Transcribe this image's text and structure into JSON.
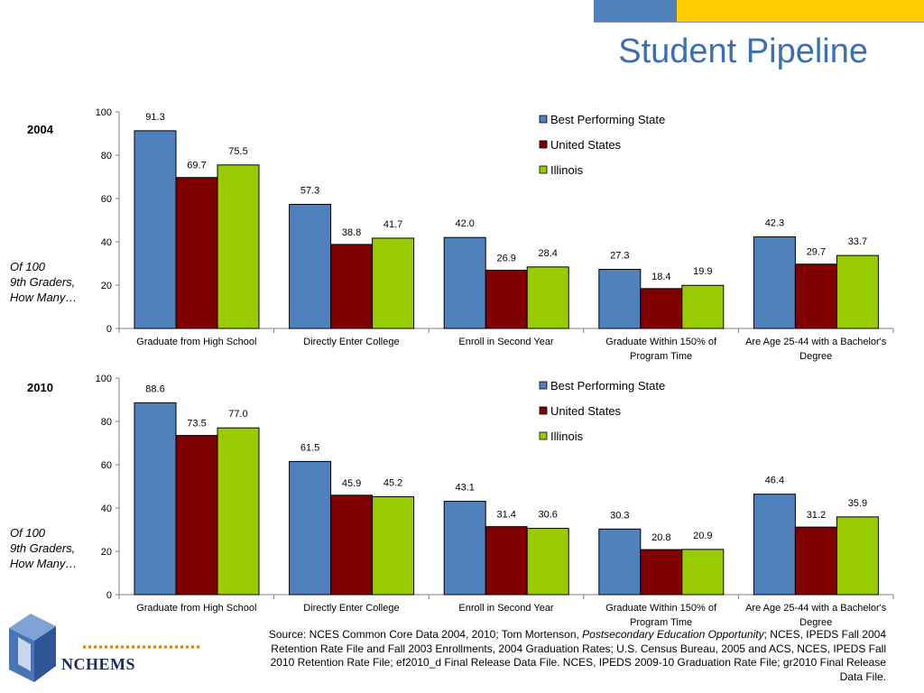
{
  "title": "Student Pipeline",
  "left_caption": {
    "line1": "Of 100",
    "line2": "9th Graders,",
    "line3": "How Many…"
  },
  "source": {
    "prefix": "Source: NCES Common Core Data 2004, 2010; Tom Mortenson, ",
    "italic": "Postsecondary Education Opportunity",
    "suffix": "; NCES, IPEDS Fall 2004 Retention Rate File and Fall 2003 Enrollments, 2004 Graduation Rates; U.S. Census Bureau, 2005  and ACS, NCES, IPEDS Fall 2010 Retention Rate File; ef2010_d Final Release Data File. NCES, IPEDS 2009-10 Graduation Rate File; gr2010 Final Release Data File."
  },
  "logo": {
    "text": "NCHEMS"
  },
  "colors": {
    "best": "#4f81bd",
    "us": "#800000",
    "il": "#99cc00",
    "title": "#3a6fb5"
  },
  "chart_data": [
    {
      "type": "bar",
      "year_label": "2004",
      "categories": [
        [
          "Graduate from High School"
        ],
        [
          "Directly Enter College"
        ],
        [
          "Enroll in Second Year"
        ],
        [
          "Graduate Within 150% of",
          "Program Time"
        ],
        [
          "Are Age 25-44 with a Bachelor's",
          "Degree"
        ]
      ],
      "series": [
        {
          "name": "Best Performing State",
          "color": "#4f81bd",
          "values": [
            91.3,
            57.3,
            42.0,
            27.3,
            42.3
          ],
          "labels": [
            "91.3",
            "57.3",
            "42.0",
            "27.3",
            "42.3"
          ]
        },
        {
          "name": "United States",
          "color": "#800000",
          "values": [
            69.7,
            38.8,
            26.9,
            18.4,
            29.7
          ],
          "labels": [
            "69.7",
            "38.8",
            "26.9",
            "18.4",
            "29.7"
          ]
        },
        {
          "name": "Illinois",
          "color": "#99cc00",
          "values": [
            75.5,
            41.7,
            28.4,
            19.9,
            33.7
          ],
          "labels": [
            "75.5",
            "41.7",
            "28.4",
            "19.9",
            "33.7"
          ]
        }
      ],
      "ylim": [
        0,
        100
      ],
      "yticks": [
        0,
        20,
        40,
        60,
        80,
        100
      ],
      "legend": "top-right"
    },
    {
      "type": "bar",
      "year_label": "2010",
      "categories": [
        [
          "Graduate from High School"
        ],
        [
          "Directly Enter College"
        ],
        [
          "Enroll in Second Year"
        ],
        [
          "Graduate Within 150% of",
          "Program Time"
        ],
        [
          "Are Age 25-44 with a Bachelor's",
          "Degree"
        ]
      ],
      "series": [
        {
          "name": "Best Performing State",
          "color": "#4f81bd",
          "values": [
            88.6,
            61.5,
            43.1,
            30.3,
            46.4
          ],
          "labels": [
            "88.6",
            "61.5",
            "43.1",
            "30.3",
            "46.4"
          ]
        },
        {
          "name": "United States",
          "color": "#800000",
          "values": [
            73.5,
            45.9,
            31.4,
            20.8,
            31.2
          ],
          "labels": [
            "73.5",
            "45.9",
            "31.4",
            "20.8",
            "31.2"
          ]
        },
        {
          "name": "Illinois",
          "color": "#99cc00",
          "values": [
            77.0,
            45.2,
            30.6,
            20.9,
            35.9
          ],
          "labels": [
            "77.0",
            "45.2",
            "30.6",
            "20.9",
            "35.9"
          ]
        }
      ],
      "ylim": [
        0,
        100
      ],
      "yticks": [
        0,
        20,
        40,
        60,
        80,
        100
      ],
      "legend": "top-right"
    }
  ]
}
